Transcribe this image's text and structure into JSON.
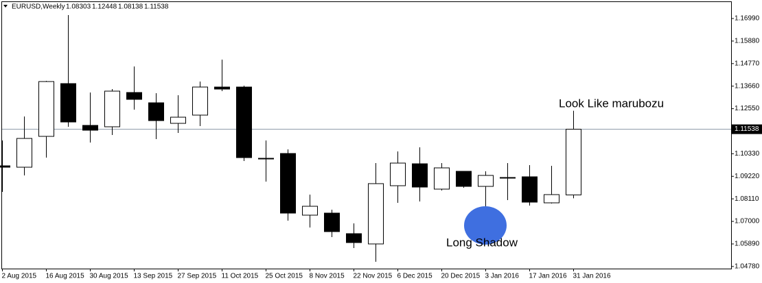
{
  "chart_data": {
    "type": "candlestick",
    "title": "EURUSD,Weekly",
    "categories": [
      "2 Aug 2015",
      null,
      "16 Aug 2015",
      null,
      "30 Aug 2015",
      null,
      "13 Sep 2015",
      null,
      "27 Sep 2015",
      null,
      "11 Oct 2015",
      null,
      "25 Oct 2015",
      null,
      "8 Nov 2015",
      null,
      "22 Nov 2015",
      null,
      "6 Dec 2015",
      null,
      "20 Dec 2015",
      null,
      "3 Jan 2016",
      null,
      "17 Jan 2016",
      null,
      "31 Jan 2016"
    ],
    "open": [
      1.09736,
      1.09668,
      1.11187,
      1.13785,
      1.11727,
      1.11659,
      1.13346,
      1.1284,
      1.11828,
      1.12233,
      1.13616,
      1.13616,
      1.10107,
      1.10343,
      1.07307,
      1.07408,
      1.06396,
      1.0589,
      1.08757,
      1.09837,
      1.08589,
      1.09466,
      1.08724,
      1.09162,
      1.09196,
      1.07914,
      1.08303
    ],
    "high": [
      1.10984,
      1.12165,
      1.1392,
      1.17159,
      1.13346,
      1.13515,
      1.14628,
      1.13312,
      1.13211,
      1.13886,
      1.14966,
      1.13683,
      1.10984,
      1.10546,
      1.08319,
      1.07577,
      1.06902,
      1.09871,
      1.10444,
      1.10647,
      1.09871,
      1.09466,
      1.09466,
      1.09871,
      1.0977,
      1.09736,
      1.12448
    ],
    "low": [
      1.08454,
      1.09264,
      1.10141,
      1.11659,
      1.10883,
      1.11254,
      1.12503,
      1.11052,
      1.11355,
      1.11693,
      1.13414,
      1.09972,
      1.0896,
      1.07037,
      1.06699,
      1.06227,
      1.05687,
      1.05012,
      1.07914,
      1.07981,
      1.08521,
      1.08656,
      1.0707,
      1.08049,
      1.07779,
      1.0788,
      1.08138
    ],
    "close": [
      1.09668,
      1.11085,
      1.13886,
      1.11895,
      1.1149,
      1.13414,
      1.13009,
      1.11963,
      1.12131,
      1.13616,
      1.13515,
      1.10141,
      1.10073,
      1.07408,
      1.07745,
      1.06497,
      1.05957,
      1.08859,
      1.09871,
      1.0869,
      1.09635,
      1.08724,
      1.09264,
      1.09162,
      1.07948,
      1.08319,
      1.11538
    ],
    "up_color": "#ffffff",
    "down_color": "#000000",
    "line_color": "#000000",
    "ylim": [
      1.04675,
      1.17834
    ],
    "yticks": [
      {
        "value": 1.1699,
        "label": "1.16990"
      },
      {
        "value": 1.1588,
        "label": "1.15880"
      },
      {
        "value": 1.1477,
        "label": "1.14770"
      },
      {
        "value": 1.1366,
        "label": "1.13660"
      },
      {
        "value": 1.1255,
        "label": "1.12550"
      },
      {
        "value": 1.1033,
        "label": "1.10330"
      },
      {
        "value": 1.0922,
        "label": "1.09220"
      },
      {
        "value": 1.0811,
        "label": "1.08110"
      },
      {
        "value": 1.07,
        "label": "1.07000"
      },
      {
        "value": 1.0589,
        "label": "1.05890"
      },
      {
        "value": 1.0478,
        "label": "1.04780"
      }
    ],
    "annotations": [
      "Look Like marubozu",
      "Long Shadow"
    ]
  }
}
